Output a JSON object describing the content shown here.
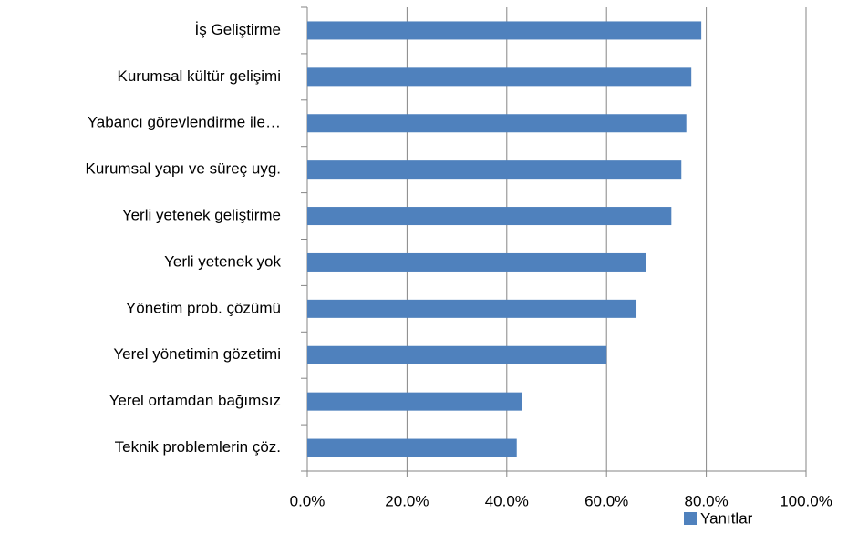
{
  "chart_data": {
    "type": "bar",
    "orientation": "horizontal",
    "categories": [
      "İş Geliştirme",
      "Kurumsal kültür gelişimi",
      "Yabancı görevlendirme ile…",
      "Kurumsal yapı ve süreç uyg.",
      "Yerli yetenek geliştirme",
      "Yerli yetenek yok",
      "Yönetim prob. çözümü",
      "Yerel yönetimin gözetimi",
      "Yerel ortamdan bağımsız",
      "Teknik problemlerin çöz."
    ],
    "series": [
      {
        "name": "Yanıtlar",
        "color": "#4f81bd",
        "values": [
          79,
          77,
          76,
          75,
          73,
          68,
          66,
          60,
          43,
          42
        ]
      }
    ],
    "xlim": [
      0,
      100
    ],
    "xticks": [
      {
        "value": 0,
        "label": "0.0%"
      },
      {
        "value": 20,
        "label": "20.0%"
      },
      {
        "value": 40,
        "label": "40.0%"
      },
      {
        "value": 60,
        "label": "60.0%"
      },
      {
        "value": 80,
        "label": "80.0%"
      },
      {
        "value": 100,
        "label": "100.0%"
      }
    ],
    "grid": true,
    "legend": "bottom-right"
  }
}
